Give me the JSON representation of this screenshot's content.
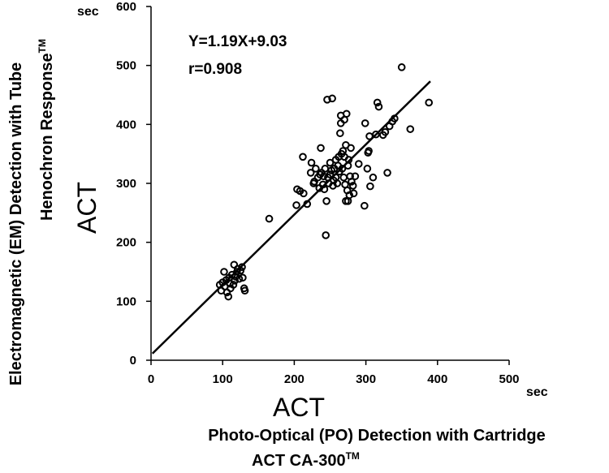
{
  "chart_data": {
    "type": "scatter",
    "x_unit": "sec",
    "y_unit": "sec",
    "xlim": [
      0,
      500
    ],
    "ylim": [
      0,
      600
    ],
    "x_ticks": [
      0,
      100,
      200,
      300,
      400,
      500
    ],
    "y_ticks": [
      0,
      100,
      200,
      300,
      400,
      500,
      600
    ],
    "equation": "Y=1.19X+9.03",
    "r_label": "r=0.908",
    "regression": {
      "slope": 1.19,
      "intercept": 9.03,
      "x_range": [
        2,
        390
      ]
    },
    "x_axis_title": "ACT",
    "x_label_line1": "Photo-Optical (PO) Detection with Cartridge",
    "x_label_line2": "ACT CA-300",
    "x_label_tm": "TM",
    "y_axis_title": "ACT",
    "y_label_line1": "Electromagnetic (EM) Detection with Tube",
    "y_label_line2": "Henochron Response",
    "y_label_tm": "TM",
    "points": [
      [
        96,
        128
      ],
      [
        98,
        118
      ],
      [
        100,
        132
      ],
      [
        102,
        150
      ],
      [
        103,
        125
      ],
      [
        105,
        136
      ],
      [
        106,
        115
      ],
      [
        108,
        108
      ],
      [
        109,
        140
      ],
      [
        110,
        130
      ],
      [
        111,
        122
      ],
      [
        113,
        145
      ],
      [
        115,
        128
      ],
      [
        116,
        162
      ],
      [
        117,
        135
      ],
      [
        118,
        142
      ],
      [
        120,
        150
      ],
      [
        121,
        155
      ],
      [
        123,
        138
      ],
      [
        125,
        152
      ],
      [
        127,
        158
      ],
      [
        128,
        140
      ],
      [
        130,
        122
      ],
      [
        131,
        118
      ],
      [
        165,
        240
      ],
      [
        203,
        263
      ],
      [
        204,
        290
      ],
      [
        208,
        287
      ],
      [
        212,
        345
      ],
      [
        213,
        283
      ],
      [
        218,
        265
      ],
      [
        223,
        318
      ],
      [
        224,
        335
      ],
      [
        227,
        300
      ],
      [
        228,
        303
      ],
      [
        230,
        325
      ],
      [
        233,
        310
      ],
      [
        235,
        292
      ],
      [
        236,
        315
      ],
      [
        237,
        360
      ],
      [
        238,
        318
      ],
      [
        240,
        298
      ],
      [
        241,
        312
      ],
      [
        242,
        290
      ],
      [
        243,
        325
      ],
      [
        244,
        212
      ],
      [
        245,
        270
      ],
      [
        246,
        442
      ],
      [
        247,
        310
      ],
      [
        248,
        300
      ],
      [
        250,
        315
      ],
      [
        250,
        335
      ],
      [
        252,
        322
      ],
      [
        253,
        444
      ],
      [
        254,
        296
      ],
      [
        255,
        305
      ],
      [
        256,
        325
      ],
      [
        258,
        340
      ],
      [
        258,
        310
      ],
      [
        260,
        300
      ],
      [
        261,
        330
      ],
      [
        262,
        345
      ],
      [
        263,
        320
      ],
      [
        264,
        385
      ],
      [
        265,
        402
      ],
      [
        265,
        415
      ],
      [
        266,
        350
      ],
      [
        267,
        325
      ],
      [
        268,
        355
      ],
      [
        269,
        310
      ],
      [
        270,
        345
      ],
      [
        270,
        408
      ],
      [
        271,
        298
      ],
      [
        272,
        365
      ],
      [
        272,
        270
      ],
      [
        273,
        418
      ],
      [
        274,
        288
      ],
      [
        275,
        330
      ],
      [
        275,
        270
      ],
      [
        276,
        340
      ],
      [
        277,
        280
      ],
      [
        278,
        312
      ],
      [
        279,
        360
      ],
      [
        280,
        303
      ],
      [
        282,
        296
      ],
      [
        283,
        283
      ],
      [
        285,
        312
      ],
      [
        290,
        333
      ],
      [
        298,
        262
      ],
      [
        299,
        402
      ],
      [
        302,
        325
      ],
      [
        303,
        352
      ],
      [
        304,
        355
      ],
      [
        305,
        380
      ],
      [
        306,
        295
      ],
      [
        310,
        310
      ],
      [
        314,
        383
      ],
      [
        316,
        437
      ],
      [
        318,
        430
      ],
      [
        324,
        382
      ],
      [
        327,
        387
      ],
      [
        330,
        318
      ],
      [
        333,
        397
      ],
      [
        337,
        405
      ],
      [
        340,
        410
      ],
      [
        350,
        497
      ],
      [
        362,
        392
      ],
      [
        388,
        437
      ]
    ]
  }
}
